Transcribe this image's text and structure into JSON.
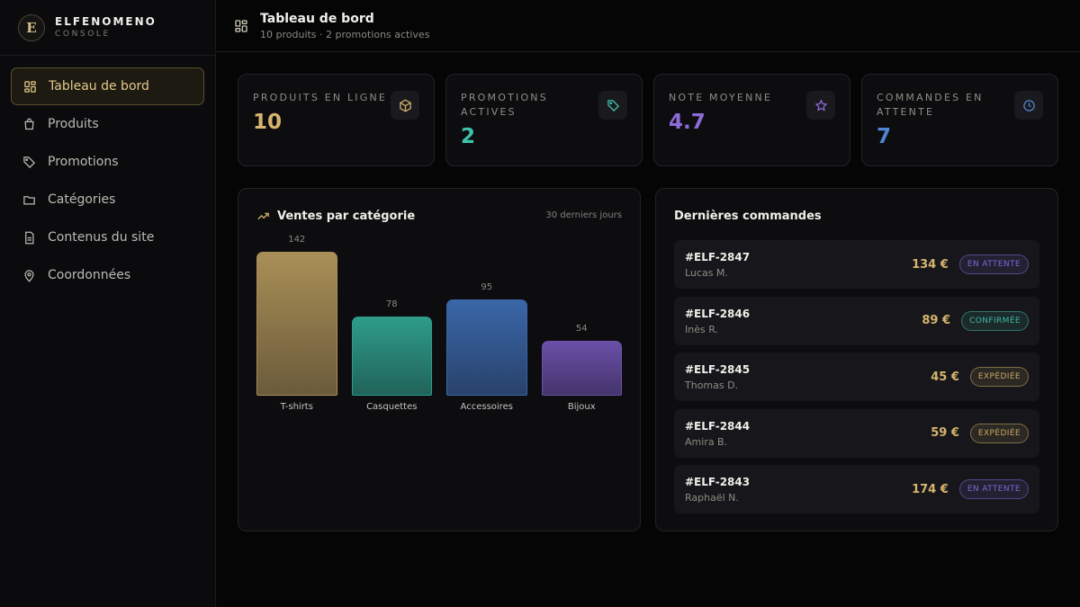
{
  "brand": {
    "logo_letter": "E",
    "name": "ELFENOMENO",
    "subtitle": "CONSOLE"
  },
  "sidebar": {
    "items": [
      {
        "label": "Tableau de bord",
        "icon": "grid-icon",
        "active": true
      },
      {
        "label": "Produits",
        "icon": "shopping-bag-icon",
        "active": false
      },
      {
        "label": "Promotions",
        "icon": "tag-icon",
        "active": false
      },
      {
        "label": "Catégories",
        "icon": "folder-icon",
        "active": false
      },
      {
        "label": "Contenus du site",
        "icon": "file-text-icon",
        "active": false
      },
      {
        "label": "Coordonnées",
        "icon": "map-pin-icon",
        "active": false
      }
    ]
  },
  "header": {
    "title": "Tableau de bord",
    "subtitle": "10 produits · 2 promotions actives",
    "icon": "grid-icon"
  },
  "stats": [
    {
      "label": "Produits en ligne",
      "value": "10",
      "icon": "package-icon",
      "color": "#d6b56e"
    },
    {
      "label": "Promotions actives",
      "value": "2",
      "icon": "tag-icon",
      "color": "#3fc2ad"
    },
    {
      "label": "Note moyenne",
      "value": "4.7",
      "icon": "star-icon",
      "color": "#8d6bd8"
    },
    {
      "label": "Commandes en attente",
      "value": "7",
      "icon": "clock-icon",
      "color": "#4f86d6"
    }
  ],
  "sales_panel": {
    "title": "Ventes par catégorie",
    "meta": "30 derniers jours",
    "icon": "trending-up-icon"
  },
  "chart_data": {
    "type": "bar",
    "title": "Ventes par catégorie",
    "categories": [
      "T-shirts",
      "Casquettes",
      "Accessoires",
      "Bijoux"
    ],
    "values": [
      142,
      78,
      95,
      54
    ],
    "colors": [
      "#a98f57",
      "#2e9c8a",
      "#3a66a8",
      "#6a4fa8"
    ],
    "ylim": [
      0,
      142
    ],
    "grid": false,
    "legend": "none"
  },
  "orders_panel": {
    "title": "Dernières commandes",
    "orders": [
      {
        "id": "#ELF-2847",
        "customer": "Lucas M.",
        "price": "134 €",
        "status": "En attente",
        "status_color": "#7c68d8"
      },
      {
        "id": "#ELF-2846",
        "customer": "Inès R.",
        "price": "89 €",
        "status": "Confirmée",
        "status_color": "#3fb8a4"
      },
      {
        "id": "#ELF-2845",
        "customer": "Thomas D.",
        "price": "45 €",
        "status": "Expédiée",
        "status_color": "#c9a865"
      },
      {
        "id": "#ELF-2844",
        "customer": "Amira B.",
        "price": "59 €",
        "status": "Expédiée",
        "status_color": "#c9a865"
      },
      {
        "id": "#ELF-2843",
        "customer": "Raphaël N.",
        "price": "174 €",
        "status": "En attente",
        "status_color": "#7c68d8"
      }
    ]
  }
}
